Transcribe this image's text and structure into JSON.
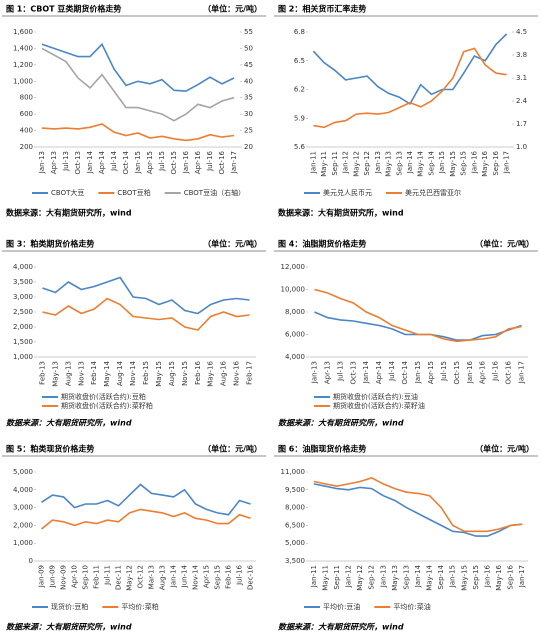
{
  "chart_data": [
    {
      "type": "line",
      "title": "图 1：CBOT 豆类期货价格走势",
      "unit": "（单位：元/吨）",
      "source": "数据来源：大有期货研究所，wind",
      "categories": [
        "Jan-13",
        "Apr-13",
        "Jul-13",
        "Oct-13",
        "Jan-14",
        "Apr-14",
        "Jul-14",
        "Oct-14",
        "Jan-15",
        "Apr-15",
        "Jul-15",
        "Oct-15",
        "Jan-16",
        "Apr-16",
        "Jul-16",
        "Oct-16",
        "Jan-17"
      ],
      "ylim": [
        200,
        1600
      ],
      "yticks": [
        {
          "value": 200,
          "label": "200"
        },
        {
          "value": 400,
          "label": "400"
        },
        {
          "value": 600,
          "label": "600"
        },
        {
          "value": 800,
          "label": "800"
        },
        {
          "value": 1000,
          "label": "1,000"
        },
        {
          "value": 1200,
          "label": "1,200"
        },
        {
          "value": 1400,
          "label": "1,400"
        },
        {
          "value": 1600,
          "label": "1,600"
        }
      ],
      "y2lim": [
        20,
        55
      ],
      "y2ticks": [
        20,
        25,
        30,
        35,
        40,
        45,
        50,
        55
      ],
      "series": [
        {
          "name": "CBOT大豆",
          "color": "#4a86c8",
          "values": [
            1450,
            1400,
            1350,
            1300,
            1300,
            1450,
            1150,
            950,
            1000,
            970,
            1020,
            890,
            880,
            960,
            1050,
            970,
            1040
          ]
        },
        {
          "name": "CBOT豆粕",
          "color": "#ed7d31",
          "values": [
            430,
            420,
            430,
            420,
            440,
            480,
            380,
            340,
            370,
            310,
            330,
            300,
            280,
            300,
            350,
            320,
            340
          ]
        },
        {
          "name": "CBOT豆油（右轴）",
          "color": "#a5a5a5",
          "axis": "y2",
          "values": [
            50,
            48,
            46,
            41,
            38,
            42,
            37,
            32,
            32,
            31,
            30,
            28,
            30,
            33,
            32,
            34,
            35
          ]
        }
      ]
    },
    {
      "type": "line",
      "title": "图 2：相关货币汇率走势",
      "source": "数据来源：大有期货研究所，wind",
      "categories": [
        "Jan-11",
        "May-11",
        "Sep-11",
        "Jan-12",
        "May-12",
        "Sep-12",
        "Jan-13",
        "May-13",
        "Sep-13",
        "Jan-14",
        "May-14",
        "Sep-14",
        "Jan-15",
        "May-15",
        "Sep-15",
        "Jan-16",
        "May-16",
        "Sep-16",
        "Jan-17"
      ],
      "ylim": [
        5.6,
        6.8
      ],
      "yticks": [
        5.6,
        5.9,
        6.2,
        6.5,
        6.8
      ],
      "y2lim": [
        1.0,
        4.5
      ],
      "y2ticks": [
        {
          "value": 1.0,
          "label": "1.0"
        },
        1.7,
        2.4,
        3.1,
        3.8,
        4.5
      ],
      "series": [
        {
          "name": "美元兑人民币元",
          "color": "#4a86c8",
          "values": [
            6.6,
            6.48,
            6.4,
            6.3,
            6.32,
            6.34,
            6.23,
            6.16,
            6.12,
            6.05,
            6.25,
            6.15,
            6.2,
            6.2,
            6.37,
            6.55,
            6.5,
            6.67,
            6.78
          ]
        },
        {
          "name": "美元兑巴西雷亚尔",
          "color": "#ed7d31",
          "axis": "y2",
          "values": [
            1.65,
            1.6,
            1.75,
            1.8,
            2.0,
            2.03,
            2.0,
            2.05,
            2.2,
            2.35,
            2.22,
            2.4,
            2.7,
            3.1,
            3.9,
            4.0,
            3.5,
            3.25,
            3.2
          ]
        }
      ]
    },
    {
      "type": "line",
      "title": "图 3：粕类期货价格走势",
      "unit": "（单位：元/吨）",
      "source": "数据来源：大有期货研究所，wind",
      "categories": [
        "Feb-13",
        "May-13",
        "Aug-13",
        "Nov-13",
        "Feb-14",
        "May-14",
        "Aug-14",
        "Nov-14",
        "Feb-15",
        "May-15",
        "Aug-15",
        "Nov-15",
        "Feb-16",
        "May-16",
        "Aug-16",
        "Nov-16",
        "Feb-17"
      ],
      "ylim": [
        1000,
        4000
      ],
      "yticks": [
        {
          "value": 1000,
          "label": "1,000"
        },
        {
          "value": 1500,
          "label": "1,500"
        },
        {
          "value": 2000,
          "label": "2,000"
        },
        {
          "value": 2500,
          "label": "2,500"
        },
        {
          "value": 3000,
          "label": "3,000"
        },
        {
          "value": 3500,
          "label": "3,500"
        },
        {
          "value": 4000,
          "label": "4,000"
        }
      ],
      "series": [
        {
          "name": "期货收盘价(活跃合约):豆粕",
          "color": "#4a86c8",
          "values": [
            3300,
            3150,
            3500,
            3250,
            3350,
            3500,
            3650,
            3000,
            2950,
            2750,
            2900,
            2550,
            2450,
            2750,
            2900,
            2950,
            2900
          ]
        },
        {
          "name": "期货收盘价(活跃合约):菜籽粕",
          "color": "#ed7d31",
          "values": [
            2500,
            2400,
            2700,
            2450,
            2600,
            2950,
            2750,
            2350,
            2300,
            2250,
            2300,
            2000,
            1900,
            2350,
            2500,
            2350,
            2400
          ]
        }
      ]
    },
    {
      "type": "line",
      "title": "图 4：油脂期货价格走势",
      "unit": "（单位：元/吨）",
      "source": "数据来源：大有期货研究所，wind",
      "categories": [
        "Jan-13",
        "Apr-13",
        "Jul-13",
        "Oct-13",
        "Jan-14",
        "Apr-14",
        "Jul-14",
        "Oct-14",
        "Jan-15",
        "Apr-15",
        "Jul-15",
        "Oct-15",
        "Jan-16",
        "Apr-16",
        "Jul-16",
        "Oct-16",
        "Jan-17"
      ],
      "ylim": [
        4000,
        12000
      ],
      "yticks": [
        {
          "value": 4000,
          "label": "4,000"
        },
        {
          "value": 6000,
          "label": "6,000"
        },
        {
          "value": 8000,
          "label": "8,000"
        },
        {
          "value": 10000,
          "label": "10,000"
        },
        {
          "value": 12000,
          "label": "12,000"
        }
      ],
      "series": [
        {
          "name": "期货收盘价(活跃合约):豆油",
          "color": "#4a86c8",
          "values": [
            8000,
            7500,
            7300,
            7200,
            7000,
            6800,
            6500,
            6000,
            6000,
            6000,
            5800,
            5500,
            5500,
            5900,
            6000,
            6400,
            6800
          ]
        },
        {
          "name": "期货收盘价(活跃合约):菜籽油",
          "color": "#ed7d31",
          "values": [
            10000,
            9700,
            9200,
            8800,
            8000,
            7500,
            6800,
            6400,
            6000,
            6000,
            5600,
            5400,
            5500,
            5600,
            5800,
            6500,
            6700
          ]
        }
      ]
    },
    {
      "type": "line",
      "title": "图 5：粕类现货价格走势",
      "unit": "（单位：元/吨）",
      "source": "数据来源：大有期货研究所，wind",
      "categories": [
        "Jan-09",
        "Jun-09",
        "Nov-09",
        "Apr-10",
        "Sep-10",
        "Feb-11",
        "Jul-11",
        "Dec-11",
        "May-12",
        "Oct-12",
        "Mar-13",
        "Aug-13",
        "Jan-14",
        "Jun-14",
        "Nov-14",
        "Apr-15",
        "Sep-15",
        "Feb-16",
        "Jul-16",
        "Dec-16"
      ],
      "ylim": [
        0,
        5000
      ],
      "yticks": [
        0,
        {
          "value": 1000,
          "label": "1,000"
        },
        {
          "value": 2000,
          "label": "2,000"
        },
        {
          "value": 3000,
          "label": "3,000"
        },
        {
          "value": 4000,
          "label": "4,000"
        },
        {
          "value": 5000,
          "label": "5,000"
        }
      ],
      "series": [
        {
          "name": "现货价:豆粕",
          "color": "#4a86c8",
          "values": [
            3300,
            3700,
            3600,
            3000,
            3200,
            3200,
            3400,
            3100,
            3700,
            4300,
            3800,
            3700,
            3600,
            4000,
            3200,
            2900,
            2700,
            2600,
            3400,
            3200
          ]
        },
        {
          "name": "平均价:菜粕",
          "color": "#ed7d31",
          "values": [
            1800,
            2300,
            2200,
            2000,
            2200,
            2100,
            2300,
            2200,
            2700,
            2900,
            2800,
            2700,
            2500,
            2700,
            2400,
            2300,
            2100,
            2100,
            2600,
            2400
          ]
        }
      ]
    },
    {
      "type": "line",
      "title": "图 6：油脂现货价格走势",
      "unit": "（单位：元/吨）",
      "source": "数据来源：大有期货研究所，wind",
      "categories": [
        "Jan-11",
        "May-11",
        "Sep-11",
        "Jan-12",
        "May-12",
        "Sep-12",
        "Jan-13",
        "May-13",
        "Sep-13",
        "Jan-14",
        "May-14",
        "Sep-14",
        "Jan-15",
        "May-15",
        "Sep-15",
        "Jan-16",
        "May-16",
        "Sep-16",
        "Jan-17"
      ],
      "ylim": [
        3500,
        11000
      ],
      "yticks": [
        {
          "value": 3500,
          "label": "3,500"
        },
        {
          "value": 5000,
          "label": "5,000"
        },
        {
          "value": 6500,
          "label": "6,500"
        },
        {
          "value": 8000,
          "label": "8,000"
        },
        {
          "value": 9500,
          "label": "9,500"
        },
        {
          "value": 11000,
          "label": "11,000"
        }
      ],
      "series": [
        {
          "name": "平均价:豆油",
          "color": "#4a86c8",
          "values": [
            10000,
            9800,
            9600,
            9500,
            9700,
            9600,
            9000,
            8600,
            8000,
            7500,
            7000,
            6500,
            6000,
            5900,
            5600,
            5600,
            6000,
            6500,
            6600
          ]
        },
        {
          "name": "平均价:菜油",
          "color": "#ed7d31",
          "values": [
            10200,
            10000,
            9800,
            10000,
            10200,
            10500,
            10000,
            9600,
            9300,
            9200,
            9000,
            8000,
            6500,
            6000,
            6000,
            6000,
            6200,
            6500,
            6600
          ]
        }
      ]
    }
  ]
}
